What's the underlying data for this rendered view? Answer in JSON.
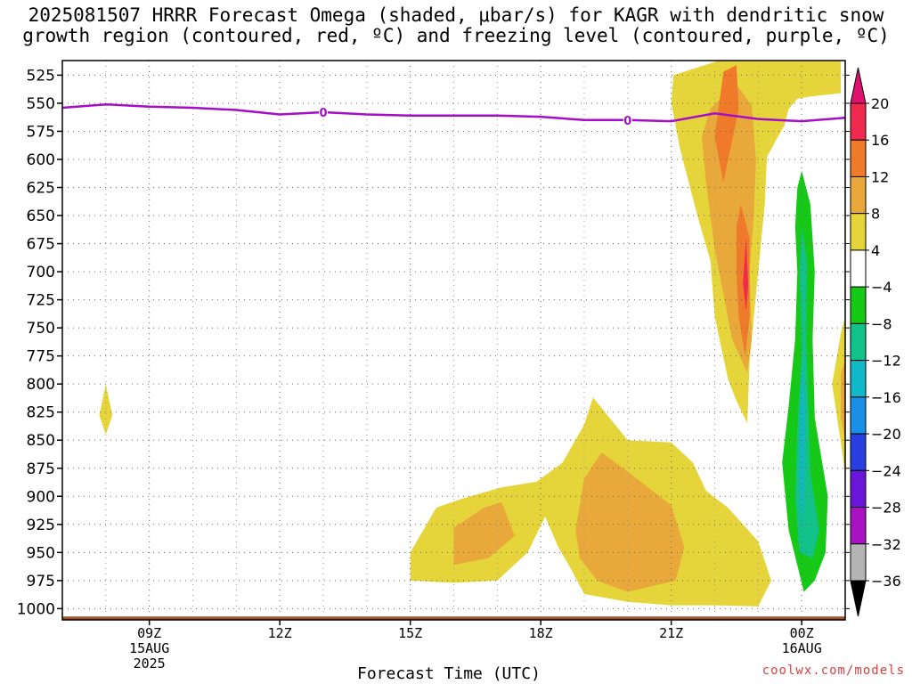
{
  "title_line1": "2025081507 HRRR Forecast Omega (shaded, μbar/s) for KAGR with dendritic snow",
  "title_line2": "growth region (contoured, red, ºC) and freezing level (contoured, purple, ºC)",
  "credit": "coolwx.com/models",
  "chart_data": {
    "type": "heatmap",
    "title": "2025081507 HRRR Forecast Omega (shaded, μbar/s) for KAGR with dendritic snow growth region (contoured, red, ºC) and freezing level (contoured, purple, ºC)",
    "xlabel": "Forecast Time (UTC)",
    "ylabel": "",
    "x_range_hours": [
      7,
      25
    ],
    "y_axis": {
      "reversed": true,
      "range": [
        512,
        1010
      ],
      "unit": "hPa",
      "ticks": [
        525,
        550,
        575,
        600,
        625,
        650,
        675,
        700,
        725,
        750,
        775,
        800,
        825,
        850,
        875,
        900,
        925,
        950,
        975,
        1000
      ]
    },
    "x_ticks": [
      {
        "hour": 9,
        "label": "09Z",
        "sub1": "15AUG",
        "sub2": "2025"
      },
      {
        "hour": 12,
        "label": "12Z"
      },
      {
        "hour": 15,
        "label": "15Z"
      },
      {
        "hour": 18,
        "label": "18Z"
      },
      {
        "hour": 21,
        "label": "21Z"
      },
      {
        "hour": 24,
        "label": "00Z",
        "sub1": "16AUG"
      }
    ],
    "grid": true,
    "colorbar": {
      "labels": [
        "20",
        "16",
        "12",
        "8",
        "4",
        "−4",
        "−8",
        "−12",
        "−16",
        "−20",
        "−24",
        "−28",
        "−32",
        "−36"
      ],
      "colors": [
        "#ee2b4e",
        "#ee7a2a",
        "#e8a83a",
        "#e6d53a",
        "#ffffff",
        "#16c916",
        "#12c28a",
        "#10b8c8",
        "#1a8fe8",
        "#2a3fe0",
        "#6a16d8",
        "#a812c0",
        "#b4b4b4"
      ],
      "top_arrow_color": "#e0106e",
      "bottom_arrow_color": "#000000"
    },
    "freezing_level": {
      "color": "#a40ec8",
      "label": "0",
      "hours": [
        7,
        8,
        9,
        10,
        11,
        12,
        13,
        14,
        15,
        16,
        17,
        18,
        19,
        20,
        21,
        22,
        23,
        24,
        25
      ],
      "pressure": [
        554,
        551,
        553,
        554,
        556,
        560,
        558,
        560,
        561,
        561,
        561,
        562,
        565,
        565,
        566,
        559,
        564,
        566,
        563
      ],
      "label_hours": [
        13,
        20
      ]
    },
    "terrain": {
      "color": "#a0522d",
      "top_pressure": 1007
    },
    "omega_regions": [
      {
        "level": 4,
        "color": "#e6d53a",
        "points": [
          [
            8.0,
            800
          ],
          [
            8.15,
            828
          ],
          [
            8.0,
            845
          ],
          [
            7.85,
            828
          ]
        ]
      },
      {
        "level": 4,
        "color": "#e6d53a",
        "points": [
          [
            15.0,
            950
          ],
          [
            15.6,
            910
          ],
          [
            16.2,
            902
          ],
          [
            17.1,
            892
          ],
          [
            17.9,
            887
          ],
          [
            18.5,
            870
          ],
          [
            19.0,
            836
          ],
          [
            19.2,
            812
          ],
          [
            20.0,
            850
          ],
          [
            21.0,
            852
          ],
          [
            21.5,
            870
          ],
          [
            21.8,
            895
          ],
          [
            22.3,
            910
          ],
          [
            23.0,
            940
          ],
          [
            23.3,
            975
          ],
          [
            23.0,
            998
          ],
          [
            22.0,
            997
          ],
          [
            21.0,
            997
          ],
          [
            20.0,
            994
          ],
          [
            19.0,
            987
          ],
          [
            18.7,
            965
          ],
          [
            18.4,
            945
          ],
          [
            18.1,
            918
          ],
          [
            17.7,
            950
          ],
          [
            17.0,
            975
          ],
          [
            16.0,
            977
          ],
          [
            15.0,
            975
          ]
        ]
      },
      {
        "level": 8,
        "color": "#e8a83a",
        "points": [
          [
            16.0,
            928
          ],
          [
            16.7,
            910
          ],
          [
            17.1,
            905
          ],
          [
            17.4,
            935
          ],
          [
            16.8,
            955
          ],
          [
            16.0,
            961
          ]
        ]
      },
      {
        "level": 8,
        "color": "#e8a83a",
        "points": [
          [
            18.8,
            930
          ],
          [
            19.0,
            884
          ],
          [
            19.4,
            861
          ],
          [
            20.0,
            878
          ],
          [
            21.0,
            908
          ],
          [
            21.3,
            945
          ],
          [
            21.1,
            975
          ],
          [
            20.0,
            985
          ],
          [
            19.3,
            975
          ],
          [
            18.9,
            955
          ]
        ]
      },
      {
        "level": 4,
        "color": "#e6d53a",
        "points": [
          [
            22.1,
            512
          ],
          [
            24.9,
            512
          ],
          [
            24.9,
            541
          ],
          [
            24.2,
            544
          ],
          [
            23.9,
            546
          ],
          [
            23.7,
            555
          ],
          [
            23.6,
            570
          ],
          [
            23.45,
            580
          ],
          [
            23.2,
            598
          ],
          [
            23.15,
            640
          ],
          [
            23.0,
            700
          ],
          [
            22.8,
            780
          ],
          [
            22.75,
            835
          ],
          [
            22.5,
            815
          ],
          [
            22.3,
            795
          ],
          [
            22.0,
            740
          ],
          [
            21.9,
            690
          ],
          [
            21.6,
            650
          ],
          [
            21.4,
            620
          ],
          [
            21.2,
            590
          ],
          [
            21.0,
            550
          ],
          [
            21.05,
            525
          ]
        ]
      },
      {
        "level": 8,
        "color": "#e8a83a",
        "points": [
          [
            22.15,
            545
          ],
          [
            22.5,
            533
          ],
          [
            22.85,
            552
          ],
          [
            22.95,
            600
          ],
          [
            22.9,
            650
          ],
          [
            22.8,
            700
          ],
          [
            22.85,
            760
          ],
          [
            22.75,
            790
          ],
          [
            22.4,
            760
          ],
          [
            22.2,
            720
          ],
          [
            22.0,
            680
          ],
          [
            21.8,
            620
          ],
          [
            21.7,
            580
          ],
          [
            21.9,
            555
          ]
        ]
      },
      {
        "level": 12,
        "color": "#ee7a2a",
        "points": [
          [
            22.2,
            522
          ],
          [
            22.5,
            516
          ],
          [
            22.55,
            555
          ],
          [
            22.2,
            620
          ],
          [
            22.0,
            580
          ]
        ]
      },
      {
        "level": 12,
        "color": "#ee7a2a",
        "points": [
          [
            22.6,
            640
          ],
          [
            22.8,
            670
          ],
          [
            22.8,
            740
          ],
          [
            22.7,
            775
          ],
          [
            22.55,
            740
          ],
          [
            22.5,
            700
          ],
          [
            22.5,
            660
          ]
        ]
      },
      {
        "level": 16,
        "color": "#ee2b4e",
        "points": [
          [
            22.72,
            670
          ],
          [
            22.77,
            712
          ],
          [
            22.72,
            735
          ],
          [
            22.65,
            710
          ]
        ]
      },
      {
        "level": 4,
        "color": "#e6d53a",
        "points": [
          [
            24.9,
            755
          ],
          [
            25.0,
            740
          ],
          [
            25.0,
            880
          ],
          [
            24.9,
            852
          ],
          [
            24.7,
            800
          ]
        ]
      },
      {
        "level": 8,
        "color": "#e8a83a",
        "points": [
          [
            24.9,
            790
          ],
          [
            25.0,
            780
          ],
          [
            25.0,
            850
          ],
          [
            24.9,
            830
          ]
        ]
      },
      {
        "level": -4,
        "color": "#16c916",
        "points": [
          [
            24.0,
            610
          ],
          [
            24.2,
            640
          ],
          [
            24.3,
            700
          ],
          [
            24.25,
            760
          ],
          [
            24.3,
            830
          ],
          [
            24.6,
            900
          ],
          [
            24.55,
            950
          ],
          [
            24.3,
            975
          ],
          [
            24.05,
            985
          ],
          [
            23.7,
            930
          ],
          [
            23.55,
            870
          ],
          [
            23.7,
            820
          ],
          [
            23.85,
            760
          ],
          [
            23.9,
            700
          ],
          [
            23.85,
            660
          ],
          [
            23.9,
            625
          ]
        ]
      },
      {
        "level": -8,
        "color": "#12c28a",
        "points": [
          [
            24.0,
            660
          ],
          [
            24.12,
            690
          ],
          [
            24.1,
            760
          ],
          [
            24.15,
            820
          ],
          [
            24.2,
            880
          ],
          [
            24.4,
            930
          ],
          [
            24.25,
            955
          ],
          [
            23.95,
            950
          ],
          [
            23.85,
            900
          ],
          [
            23.9,
            840
          ],
          [
            24.0,
            770
          ],
          [
            23.95,
            700
          ]
        ]
      },
      {
        "level": -12,
        "color": "#10b8c8",
        "points": [
          [
            24.0,
            780
          ],
          [
            24.08,
            820
          ],
          [
            24.05,
            900
          ],
          [
            24.0,
            930
          ],
          [
            23.95,
            880
          ],
          [
            23.97,
            820
          ]
        ]
      }
    ]
  }
}
